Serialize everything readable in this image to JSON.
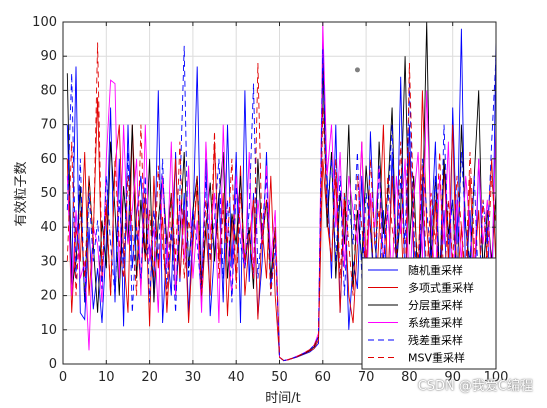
{
  "chart_data": {
    "type": "line",
    "title": "",
    "xlabel": "时间/t",
    "ylabel": "有效粒子数",
    "xlim": [
      0,
      100
    ],
    "ylim": [
      0,
      100
    ],
    "xticks": [
      0,
      10,
      20,
      30,
      40,
      50,
      60,
      70,
      80,
      90,
      100
    ],
    "yticks": [
      0,
      10,
      20,
      30,
      40,
      50,
      60,
      70,
      80,
      90,
      100
    ],
    "grid": true,
    "legend_position": "bottom-right",
    "series": [
      {
        "name": "随机重采样",
        "color": "#0000ff",
        "style": "solid",
        "x": [
          1,
          2,
          3,
          4,
          5,
          6,
          7,
          8,
          9,
          10,
          11,
          12,
          13,
          14,
          15,
          16,
          17,
          18,
          19,
          20,
          21,
          22,
          23,
          24,
          25,
          26,
          27,
          28,
          29,
          30,
          31,
          32,
          33,
          34,
          35,
          36,
          37,
          38,
          39,
          40,
          41,
          42,
          43,
          44,
          45,
          46,
          47,
          48,
          49,
          50,
          51,
          52,
          53,
          54,
          55,
          56,
          57,
          58,
          59,
          60,
          61,
          62,
          63,
          64,
          65,
          66,
          67,
          68,
          69,
          70,
          71,
          72,
          73,
          74,
          75,
          76,
          77,
          78,
          79,
          80,
          81,
          82,
          83,
          84,
          85,
          86,
          87,
          88,
          89,
          90,
          91,
          92,
          93,
          94,
          95,
          96,
          97,
          98,
          99,
          100
        ],
        "values": [
          70,
          25,
          87,
          15,
          13,
          40,
          16,
          28,
          12,
          36,
          75,
          18,
          60,
          11,
          70,
          28,
          44,
          55,
          31,
          35,
          22,
          80,
          12,
          35,
          20,
          62,
          24,
          50,
          15,
          40,
          87,
          22,
          60,
          14,
          33,
          50,
          18,
          70,
          28,
          62,
          12,
          80,
          24,
          50,
          14,
          30,
          62,
          22,
          40,
          2,
          1,
          1.3,
          1.6,
          2,
          2.5,
          3,
          3.5,
          4.5,
          6,
          94,
          55,
          25,
          70,
          15,
          50,
          10,
          30,
          22,
          55,
          12,
          68,
          35,
          25,
          45,
          18,
          62,
          28,
          84,
          20,
          70,
          30,
          12,
          55,
          15,
          38,
          65,
          20,
          45,
          10,
          75,
          35,
          98,
          22,
          45,
          15,
          60,
          28,
          40,
          12,
          95
        ]
      },
      {
        "name": "多项式重采样",
        "color": "#e00000",
        "style": "solid",
        "x": [
          1,
          2,
          3,
          4,
          5,
          6,
          7,
          8,
          9,
          10,
          11,
          12,
          13,
          14,
          15,
          16,
          17,
          18,
          19,
          20,
          21,
          22,
          23,
          24,
          25,
          26,
          27,
          28,
          29,
          30,
          31,
          32,
          33,
          34,
          35,
          36,
          37,
          38,
          39,
          40,
          41,
          42,
          43,
          44,
          45,
          46,
          47,
          48,
          49,
          50,
          51,
          52,
          53,
          54,
          55,
          56,
          57,
          58,
          59,
          60,
          61,
          62,
          63,
          64,
          65,
          66,
          67,
          68,
          69,
          70,
          71,
          72,
          73,
          74,
          75,
          76,
          77,
          78,
          79,
          80,
          81,
          82,
          83,
          84,
          85,
          86,
          87,
          88,
          89,
          90,
          91,
          92,
          93,
          94,
          95,
          96,
          97,
          98,
          99,
          100
        ],
        "values": [
          60,
          15,
          40,
          30,
          62,
          20,
          38,
          78,
          25,
          46,
          20,
          58,
          70,
          32,
          15,
          70,
          40,
          22,
          50,
          11,
          55,
          28,
          43,
          15,
          38,
          60,
          25,
          45,
          12,
          35,
          52,
          18,
          40,
          20,
          65,
          30,
          50,
          14,
          42,
          25,
          58,
          20,
          36,
          48,
          13,
          40,
          25,
          55,
          20,
          2,
          1,
          1.2,
          1.6,
          2.1,
          2.6,
          3.2,
          3.8,
          4.5,
          7,
          60,
          42,
          30,
          55,
          15,
          48,
          20,
          12,
          35,
          65,
          28,
          50,
          14,
          38,
          70,
          22,
          55,
          30,
          45,
          12,
          62,
          35,
          20,
          80,
          40,
          25,
          48,
          15,
          58,
          30,
          70,
          22,
          40,
          18,
          55,
          28,
          45,
          10,
          38,
          60,
          28
        ]
      },
      {
        "name": "分层重采样",
        "color": "#000000",
        "style": "solid",
        "x": [
          1,
          2,
          3,
          4,
          5,
          6,
          7,
          8,
          9,
          10,
          11,
          12,
          13,
          14,
          15,
          16,
          17,
          18,
          19,
          20,
          21,
          22,
          23,
          24,
          25,
          26,
          27,
          28,
          29,
          30,
          31,
          32,
          33,
          34,
          35,
          36,
          37,
          38,
          39,
          40,
          41,
          42,
          43,
          44,
          45,
          46,
          47,
          48,
          49,
          50,
          51,
          52,
          53,
          54,
          55,
          56,
          57,
          58,
          59,
          60,
          61,
          62,
          63,
          64,
          65,
          66,
          67,
          68,
          69,
          70,
          71,
          72,
          73,
          74,
          75,
          76,
          77,
          78,
          79,
          80,
          81,
          82,
          83,
          84,
          85,
          86,
          87,
          88,
          89,
          90,
          91,
          92,
          93,
          94,
          95,
          96,
          97,
          98,
          99,
          100
        ],
        "values": [
          85,
          22,
          30,
          52,
          18,
          55,
          35,
          15,
          42,
          28,
          65,
          45,
          20,
          52,
          35,
          70,
          25,
          48,
          30,
          60,
          18,
          42,
          55,
          35,
          50,
          20,
          38,
          62,
          28,
          45,
          55,
          22,
          40,
          53,
          30,
          48,
          62,
          25,
          44,
          35,
          55,
          28,
          40,
          22,
          60,
          35,
          48,
          25,
          40,
          2,
          1,
          1.3,
          1.7,
          2.2,
          2.7,
          3.3,
          4,
          5,
          8,
          88,
          40,
          62,
          25,
          50,
          35,
          70,
          22,
          45,
          30,
          58,
          40,
          20,
          65,
          38,
          50,
          75,
          28,
          45,
          90,
          35,
          55,
          20,
          42,
          100,
          30,
          55,
          25,
          60,
          38,
          48,
          20,
          70,
          40,
          28,
          55,
          80,
          25,
          45,
          30,
          50
        ]
      },
      {
        "name": "系统重采样",
        "color": "#ff00ff",
        "style": "solid",
        "x": [
          1,
          2,
          3,
          4,
          5,
          6,
          7,
          8,
          9,
          10,
          11,
          12,
          13,
          14,
          15,
          16,
          17,
          18,
          19,
          20,
          21,
          22,
          23,
          24,
          25,
          26,
          27,
          28,
          29,
          30,
          31,
          32,
          33,
          34,
          35,
          36,
          37,
          38,
          39,
          40,
          41,
          42,
          43,
          44,
          45,
          46,
          47,
          48,
          49,
          50,
          51,
          52,
          53,
          54,
          55,
          56,
          57,
          58,
          59,
          60,
          61,
          62,
          63,
          64,
          65,
          66,
          67,
          68,
          69,
          70,
          71,
          72,
          73,
          74,
          75,
          76,
          77,
          78,
          79,
          80,
          81,
          82,
          83,
          84,
          85,
          86,
          87,
          88,
          89,
          90,
          91,
          92,
          93,
          94,
          95,
          96,
          97,
          98,
          99,
          100
        ],
        "values": [
          55,
          20,
          45,
          25,
          30,
          4,
          40,
          35,
          18,
          60,
          83,
          82,
          25,
          70,
          35,
          45,
          60,
          20,
          70,
          30,
          40,
          15,
          55,
          28,
          65,
          20,
          48,
          30,
          58,
          25,
          42,
          15,
          65,
          38,
          50,
          12,
          70,
          35,
          20,
          55,
          40,
          28,
          62,
          25,
          48,
          35,
          58,
          30,
          45,
          2,
          1,
          1.3,
          1.7,
          2.3,
          2.8,
          3.5,
          4.2,
          5.5,
          9,
          100,
          55,
          70,
          40,
          62,
          28,
          55,
          45,
          35,
          65,
          20,
          50,
          40,
          58,
          30,
          45,
          25,
          55,
          38,
          60,
          20,
          48,
          62,
          30,
          80,
          40,
          25,
          55,
          35,
          65,
          20,
          48,
          30,
          55,
          40,
          25,
          60,
          35,
          48,
          25,
          70
        ]
      },
      {
        "name": "残差重采样",
        "color": "#0000ff",
        "style": "dashed",
        "x": [
          1,
          2,
          3,
          4,
          5,
          6,
          7,
          8,
          9,
          10,
          11,
          12,
          13,
          14,
          15,
          16,
          17,
          18,
          19,
          20,
          21,
          22,
          23,
          24,
          25,
          26,
          27,
          28,
          29,
          30,
          31,
          32,
          33,
          34,
          35,
          36,
          37,
          38,
          39,
          40,
          41,
          42,
          43,
          44,
          45,
          46,
          47,
          48,
          49,
          50,
          51,
          52,
          53,
          54,
          55,
          56,
          57,
          58,
          59,
          60,
          61,
          62,
          63,
          64,
          65,
          66,
          67,
          68,
          69,
          70,
          71,
          72,
          73,
          74,
          75,
          76,
          77,
          78,
          79,
          80,
          81,
          82,
          83,
          84,
          85,
          86,
          87,
          88,
          89,
          90,
          91,
          92,
          93,
          94,
          95,
          96,
          97,
          98,
          99,
          100
        ],
        "values": [
          45,
          85,
          25,
          60,
          18,
          50,
          30,
          42,
          22,
          55,
          35,
          20,
          48,
          28,
          62,
          15,
          40,
          25,
          55,
          18,
          45,
          30,
          60,
          22,
          40,
          15,
          50,
          93,
          25,
          45,
          35,
          20,
          55,
          30,
          42,
          60,
          25,
          48,
          18,
          52,
          35,
          28,
          45,
          82,
          25,
          40,
          55,
          20,
          35,
          2,
          1,
          1.3,
          1.7,
          2.2,
          2.8,
          3.4,
          4.2,
          5.5,
          8,
          92,
          45,
          60,
          30,
          55,
          20,
          48,
          35,
          62,
          25,
          50,
          40,
          20,
          58,
          30,
          45,
          70,
          25,
          55,
          35,
          82,
          40,
          20,
          60,
          45,
          30,
          55,
          20,
          70,
          35,
          48,
          25,
          62,
          40,
          30,
          55,
          20,
          48,
          35,
          65,
          90
        ]
      },
      {
        "name": "MSV重采样",
        "color": "#e00000",
        "style": "dashed",
        "x": [
          1,
          2,
          3,
          4,
          5,
          6,
          7,
          8,
          9,
          10,
          11,
          12,
          13,
          14,
          15,
          16,
          17,
          18,
          19,
          20,
          21,
          22,
          23,
          24,
          25,
          26,
          27,
          28,
          29,
          30,
          31,
          32,
          33,
          34,
          35,
          36,
          37,
          38,
          39,
          40,
          41,
          42,
          43,
          44,
          45,
          46,
          47,
          48,
          49,
          50,
          51,
          52,
          53,
          54,
          55,
          56,
          57,
          58,
          59,
          60,
          61,
          62,
          63,
          64,
          65,
          66,
          67,
          68,
          69,
          70,
          71,
          72,
          73,
          74,
          75,
          76,
          77,
          78,
          79,
          80,
          81,
          82,
          83,
          84,
          85,
          86,
          87,
          88,
          89,
          90,
          91,
          92,
          93,
          94,
          95,
          96,
          97,
          98,
          99,
          100
        ],
        "values": [
          30,
          65,
          20,
          45,
          25,
          55,
          35,
          94,
          28,
          48,
          20,
          60,
          35,
          25,
          55,
          40,
          20,
          70,
          30,
          45,
          25,
          58,
          35,
          20,
          50,
          30,
          65,
          25,
          42,
          35,
          55,
          20,
          48,
          30,
          68,
          25,
          45,
          35,
          60,
          22,
          50,
          30,
          40,
          25,
          88,
          35,
          48,
          20,
          40,
          2,
          1,
          1.3,
          1.7,
          2.2,
          2.8,
          3.5,
          4.2,
          5.5,
          8,
          75,
          45,
          30,
          60,
          25,
          50,
          35,
          20,
          55,
          40,
          28,
          60,
          35,
          45,
          25,
          55,
          40,
          30,
          65,
          20,
          88,
          45,
          30,
          58,
          25,
          50,
          35,
          62,
          20,
          48,
          30,
          55,
          40,
          25,
          62,
          35,
          20,
          48,
          30,
          55,
          40
        ]
      }
    ],
    "annotations": [
      {
        "type": "point",
        "x": 68,
        "y": 86,
        "color": "#808080"
      }
    ]
  },
  "watermark": "CSDN @我爱C编程"
}
